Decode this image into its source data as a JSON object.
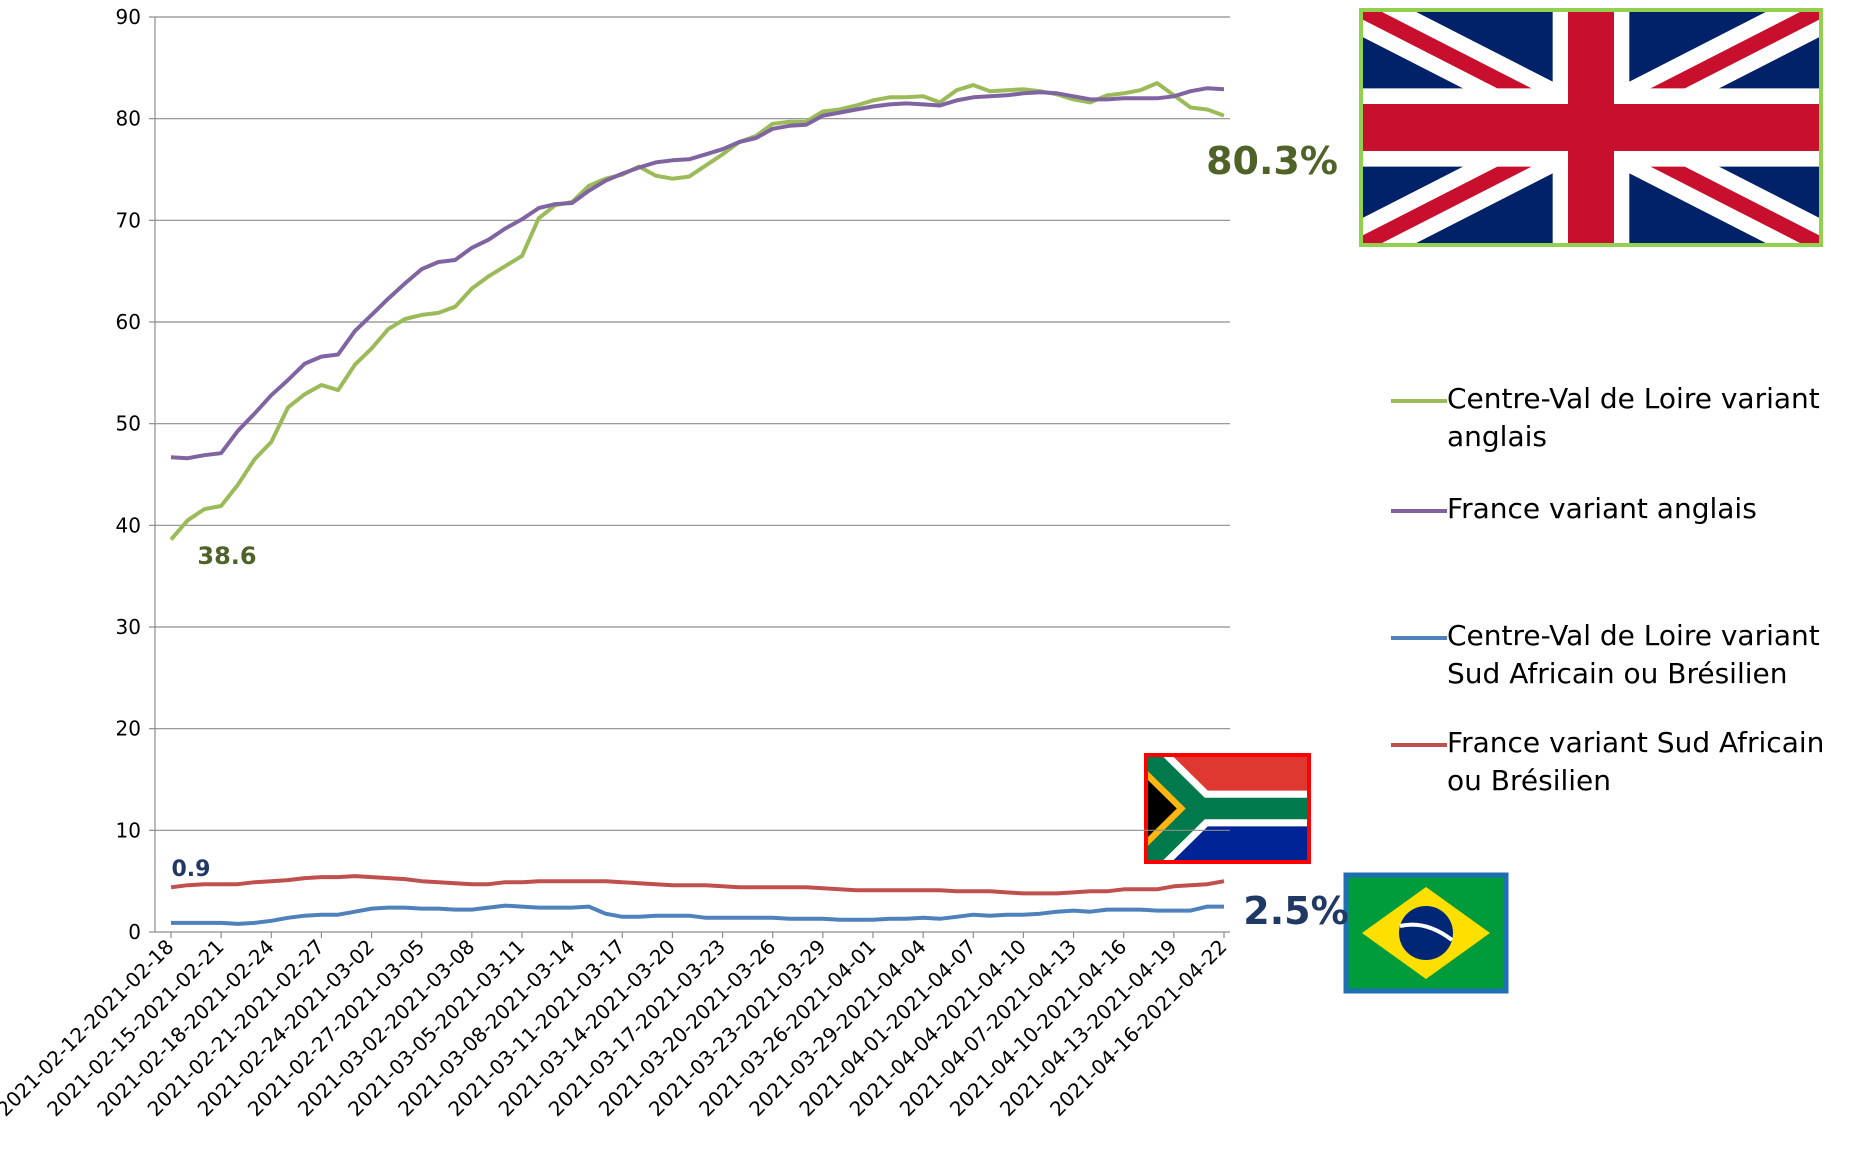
{
  "chart_data": {
    "type": "line",
    "categories": [
      "2021-02-12-2021-02-18",
      null,
      null,
      "2021-02-15-2021-02-21",
      null,
      null,
      "2021-02-18-2021-02-24",
      null,
      null,
      "2021-02-21-2021-02-27",
      null,
      null,
      "2021-02-24-2021-03-02",
      null,
      null,
      "2021-02-27-2021-03-05",
      null,
      null,
      "2021-03-02-2021-03-08",
      null,
      null,
      "2021-03-05-2021-03-11",
      null,
      null,
      "2021-03-08-2021-03-14",
      null,
      null,
      "2021-03-11-2021-03-17",
      null,
      null,
      "2021-03-14-2021-03-20",
      null,
      null,
      "2021-03-17-2021-03-23",
      null,
      null,
      "2021-03-20-2021-03-26",
      null,
      null,
      "2021-03-23-2021-03-29",
      null,
      null,
      "2021-03-26-2021-04-01",
      null,
      null,
      "2021-03-29-2021-04-04",
      null,
      null,
      "2021-04-01-2021-04-07",
      null,
      null,
      "2021-04-04-2021-04-10",
      null,
      null,
      "2021-04-07-2021-04-13",
      null,
      null,
      "2021-04-10-2021-04-16",
      null,
      null,
      "2021-04-13-2021-04-19",
      null,
      null,
      "2021-04-16-2021-04-22"
    ],
    "series": [
      {
        "name": "Centre-Val de Loire variant anglais",
        "color": "#9bbb59",
        "values": [
          38.6,
          40.5,
          41.6,
          41.9,
          44.0,
          46.5,
          48.2,
          51.6,
          52.9,
          53.8,
          53.3,
          55.8,
          57.4,
          59.3,
          60.3,
          60.7,
          60.9,
          61.5,
          63.3,
          64.5,
          65.5,
          66.5,
          70.2,
          71.5,
          71.8,
          73.4,
          74.1,
          74.5,
          75.3,
          74.4,
          74.1,
          74.3,
          75.4,
          76.5,
          77.7,
          78.3,
          79.5,
          79.7,
          79.7,
          80.7,
          80.9,
          81.3,
          81.8,
          82.1,
          82.1,
          82.2,
          81.6,
          82.8,
          83.3,
          82.7,
          82.8,
          82.9,
          82.7,
          82.4,
          81.9,
          81.6,
          82.3,
          82.5,
          82.8,
          83.5,
          82.3,
          81.1,
          80.9,
          80.3
        ]
      },
      {
        "name": "France variant anglais",
        "color": "#8064a2",
        "values": [
          46.7,
          46.6,
          46.9,
          47.1,
          49.3,
          51.0,
          52.8,
          54.3,
          55.9,
          56.6,
          56.8,
          59.1,
          60.7,
          62.3,
          63.8,
          65.2,
          65.9,
          66.1,
          67.3,
          68.1,
          69.2,
          70.1,
          71.2,
          71.6,
          71.7,
          72.9,
          73.9,
          74.6,
          75.2,
          75.7,
          75.9,
          76.0,
          76.5,
          77.0,
          77.7,
          78.1,
          79.0,
          79.3,
          79.4,
          80.3,
          80.6,
          80.9,
          81.2,
          81.4,
          81.5,
          81.4,
          81.3,
          81.8,
          82.1,
          82.2,
          82.3,
          82.5,
          82.6,
          82.5,
          82.2,
          81.9,
          81.9,
          82.0,
          82.0,
          82.0,
          82.2,
          82.7,
          83.0,
          82.9
        ]
      },
      {
        "name": "Centre-Val de Loire variant Sud Africain ou Brésilien",
        "color": "#4f81bd",
        "values": [
          0.9,
          0.9,
          0.9,
          0.9,
          0.8,
          0.9,
          1.1,
          1.4,
          1.6,
          1.7,
          1.7,
          2.0,
          2.3,
          2.4,
          2.4,
          2.3,
          2.3,
          2.2,
          2.2,
          2.4,
          2.6,
          2.5,
          2.4,
          2.4,
          2.4,
          2.5,
          1.8,
          1.5,
          1.5,
          1.6,
          1.6,
          1.6,
          1.4,
          1.4,
          1.4,
          1.4,
          1.4,
          1.3,
          1.3,
          1.3,
          1.2,
          1.2,
          1.2,
          1.3,
          1.3,
          1.4,
          1.3,
          1.5,
          1.7,
          1.6,
          1.7,
          1.7,
          1.8,
          2.0,
          2.1,
          2.0,
          2.2,
          2.2,
          2.2,
          2.1,
          2.1,
          2.1,
          2.5,
          2.5
        ]
      },
      {
        "name": "France variant Sud Africain ou Brésilien",
        "color": "#c0504d",
        "values": [
          4.4,
          4.6,
          4.7,
          4.7,
          4.7,
          4.9,
          5.0,
          5.1,
          5.3,
          5.4,
          5.4,
          5.5,
          5.4,
          5.3,
          5.2,
          5.0,
          4.9,
          4.8,
          4.7,
          4.7,
          4.9,
          4.9,
          5.0,
          5.0,
          5.0,
          5.0,
          5.0,
          4.9,
          4.8,
          4.7,
          4.6,
          4.6,
          4.6,
          4.5,
          4.4,
          4.4,
          4.4,
          4.4,
          4.4,
          4.3,
          4.2,
          4.1,
          4.1,
          4.1,
          4.1,
          4.1,
          4.1,
          4.0,
          4.0,
          4.0,
          3.9,
          3.8,
          3.8,
          3.8,
          3.9,
          4.0,
          4.0,
          4.2,
          4.2,
          4.2,
          4.5,
          4.6,
          4.7,
          5.0
        ]
      }
    ],
    "annotations": [
      {
        "text": "80.3%",
        "color": "#4f6228"
      },
      {
        "text": "38.6",
        "color": "#4f6228"
      },
      {
        "text": "0.9",
        "color": "#1f3864"
      },
      {
        "text": "2.5%",
        "color": "#1f3864"
      }
    ],
    "ylim": [
      0,
      90
    ],
    "yticks": [
      0,
      10,
      20,
      30,
      40,
      50,
      60,
      70,
      80,
      90
    ],
    "grid": true
  }
}
